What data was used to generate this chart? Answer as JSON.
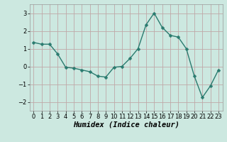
{
  "x": [
    0,
    1,
    2,
    3,
    4,
    5,
    6,
    7,
    8,
    9,
    10,
    11,
    12,
    13,
    14,
    15,
    16,
    17,
    18,
    19,
    20,
    21,
    22,
    23
  ],
  "y": [
    1.35,
    1.25,
    1.25,
    0.7,
    -0.05,
    -0.1,
    -0.2,
    -0.3,
    -0.55,
    -0.6,
    -0.05,
    0.0,
    0.45,
    1.0,
    2.35,
    3.0,
    2.2,
    1.75,
    1.65,
    1.0,
    -0.55,
    -1.75,
    -1.1,
    -0.2
  ],
  "line_color": "#2a7b6f",
  "marker": "D",
  "marker_size": 2.5,
  "linewidth": 1.0,
  "xlabel": "Humidex (Indice chaleur)",
  "ylim": [
    -2.5,
    3.5
  ],
  "xlim": [
    -0.5,
    23.5
  ],
  "yticks": [
    -2,
    -1,
    0,
    1,
    2,
    3
  ],
  "xticks": [
    0,
    1,
    2,
    3,
    4,
    5,
    6,
    7,
    8,
    9,
    10,
    11,
    12,
    13,
    14,
    15,
    16,
    17,
    18,
    19,
    20,
    21,
    22,
    23
  ],
  "grid_color": "#c0a8a8",
  "bg_color": "#cce8e0",
  "xlabel_fontsize": 7.5,
  "tick_fontsize": 6.0
}
